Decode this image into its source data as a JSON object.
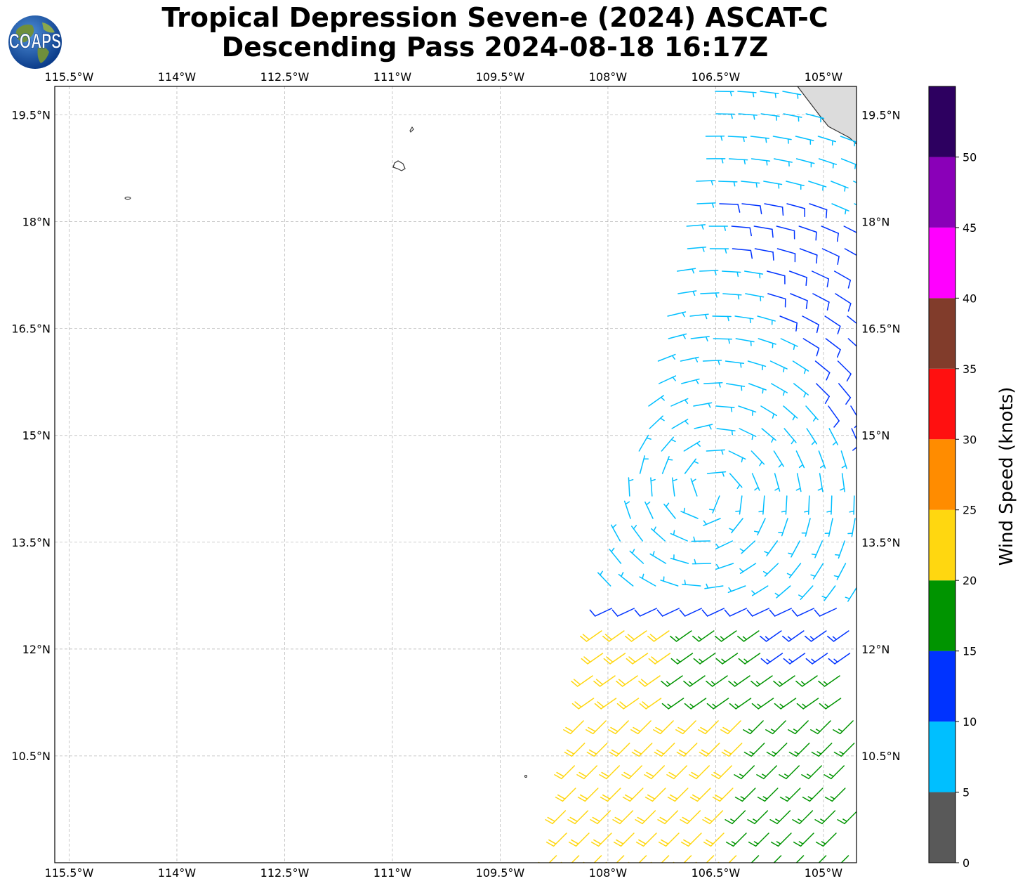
{
  "title": {
    "line1": "Tropical Depression Seven-e (2024) ASCAT-C",
    "line2": "Descending Pass 2024-08-18 16:17Z"
  },
  "logo": {
    "text": "COAPS",
    "icon": "globe-logo-icon"
  },
  "map": {
    "lon_range": [
      -115.7,
      -104.54
    ],
    "lat_range": [
      9.0,
      19.9
    ],
    "lon_ticks": [
      "115.5°W",
      "114°W",
      "112.5°W",
      "111°W",
      "109.5°W",
      "108°W",
      "106.5°W",
      "105°W"
    ],
    "lon_tick_values": [
      -115.5,
      -114,
      -112.5,
      -111,
      -109.5,
      -108,
      -106.5,
      -105
    ],
    "lat_ticks": [
      "19.5°N",
      "18°N",
      "16.5°N",
      "15°N",
      "13.5°N",
      "12°N",
      "10.5°N"
    ],
    "lat_tick_values": [
      19.5,
      18,
      16.5,
      15,
      13.5,
      12,
      10.5
    ],
    "grid": true,
    "swath_region": "east side, lon > -108.8"
  },
  "colorbar": {
    "label": "Wind Speed (knots)",
    "tick_labels": [
      "0",
      "5",
      "10",
      "15",
      "20",
      "25",
      "30",
      "35",
      "40",
      "45",
      "50"
    ],
    "bins": [
      {
        "min": 0,
        "max": 5,
        "color": "#595959"
      },
      {
        "min": 5,
        "max": 10,
        "color": "#00bfff"
      },
      {
        "min": 10,
        "max": 15,
        "color": "#0033ff"
      },
      {
        "min": 15,
        "max": 20,
        "color": "#009400"
      },
      {
        "min": 20,
        "max": 25,
        "color": "#ffd710"
      },
      {
        "min": 25,
        "max": 30,
        "color": "#ff8c00"
      },
      {
        "min": 30,
        "max": 35,
        "color": "#ff1010"
      },
      {
        "min": 35,
        "max": 40,
        "color": "#813c2b"
      },
      {
        "min": 40,
        "max": 45,
        "color": "#ff00ff"
      },
      {
        "min": 45,
        "max": 50,
        "color": "#8a00b8"
      },
      {
        "min": 50,
        "max": 55,
        "color": "#2d0060"
      }
    ]
  }
}
